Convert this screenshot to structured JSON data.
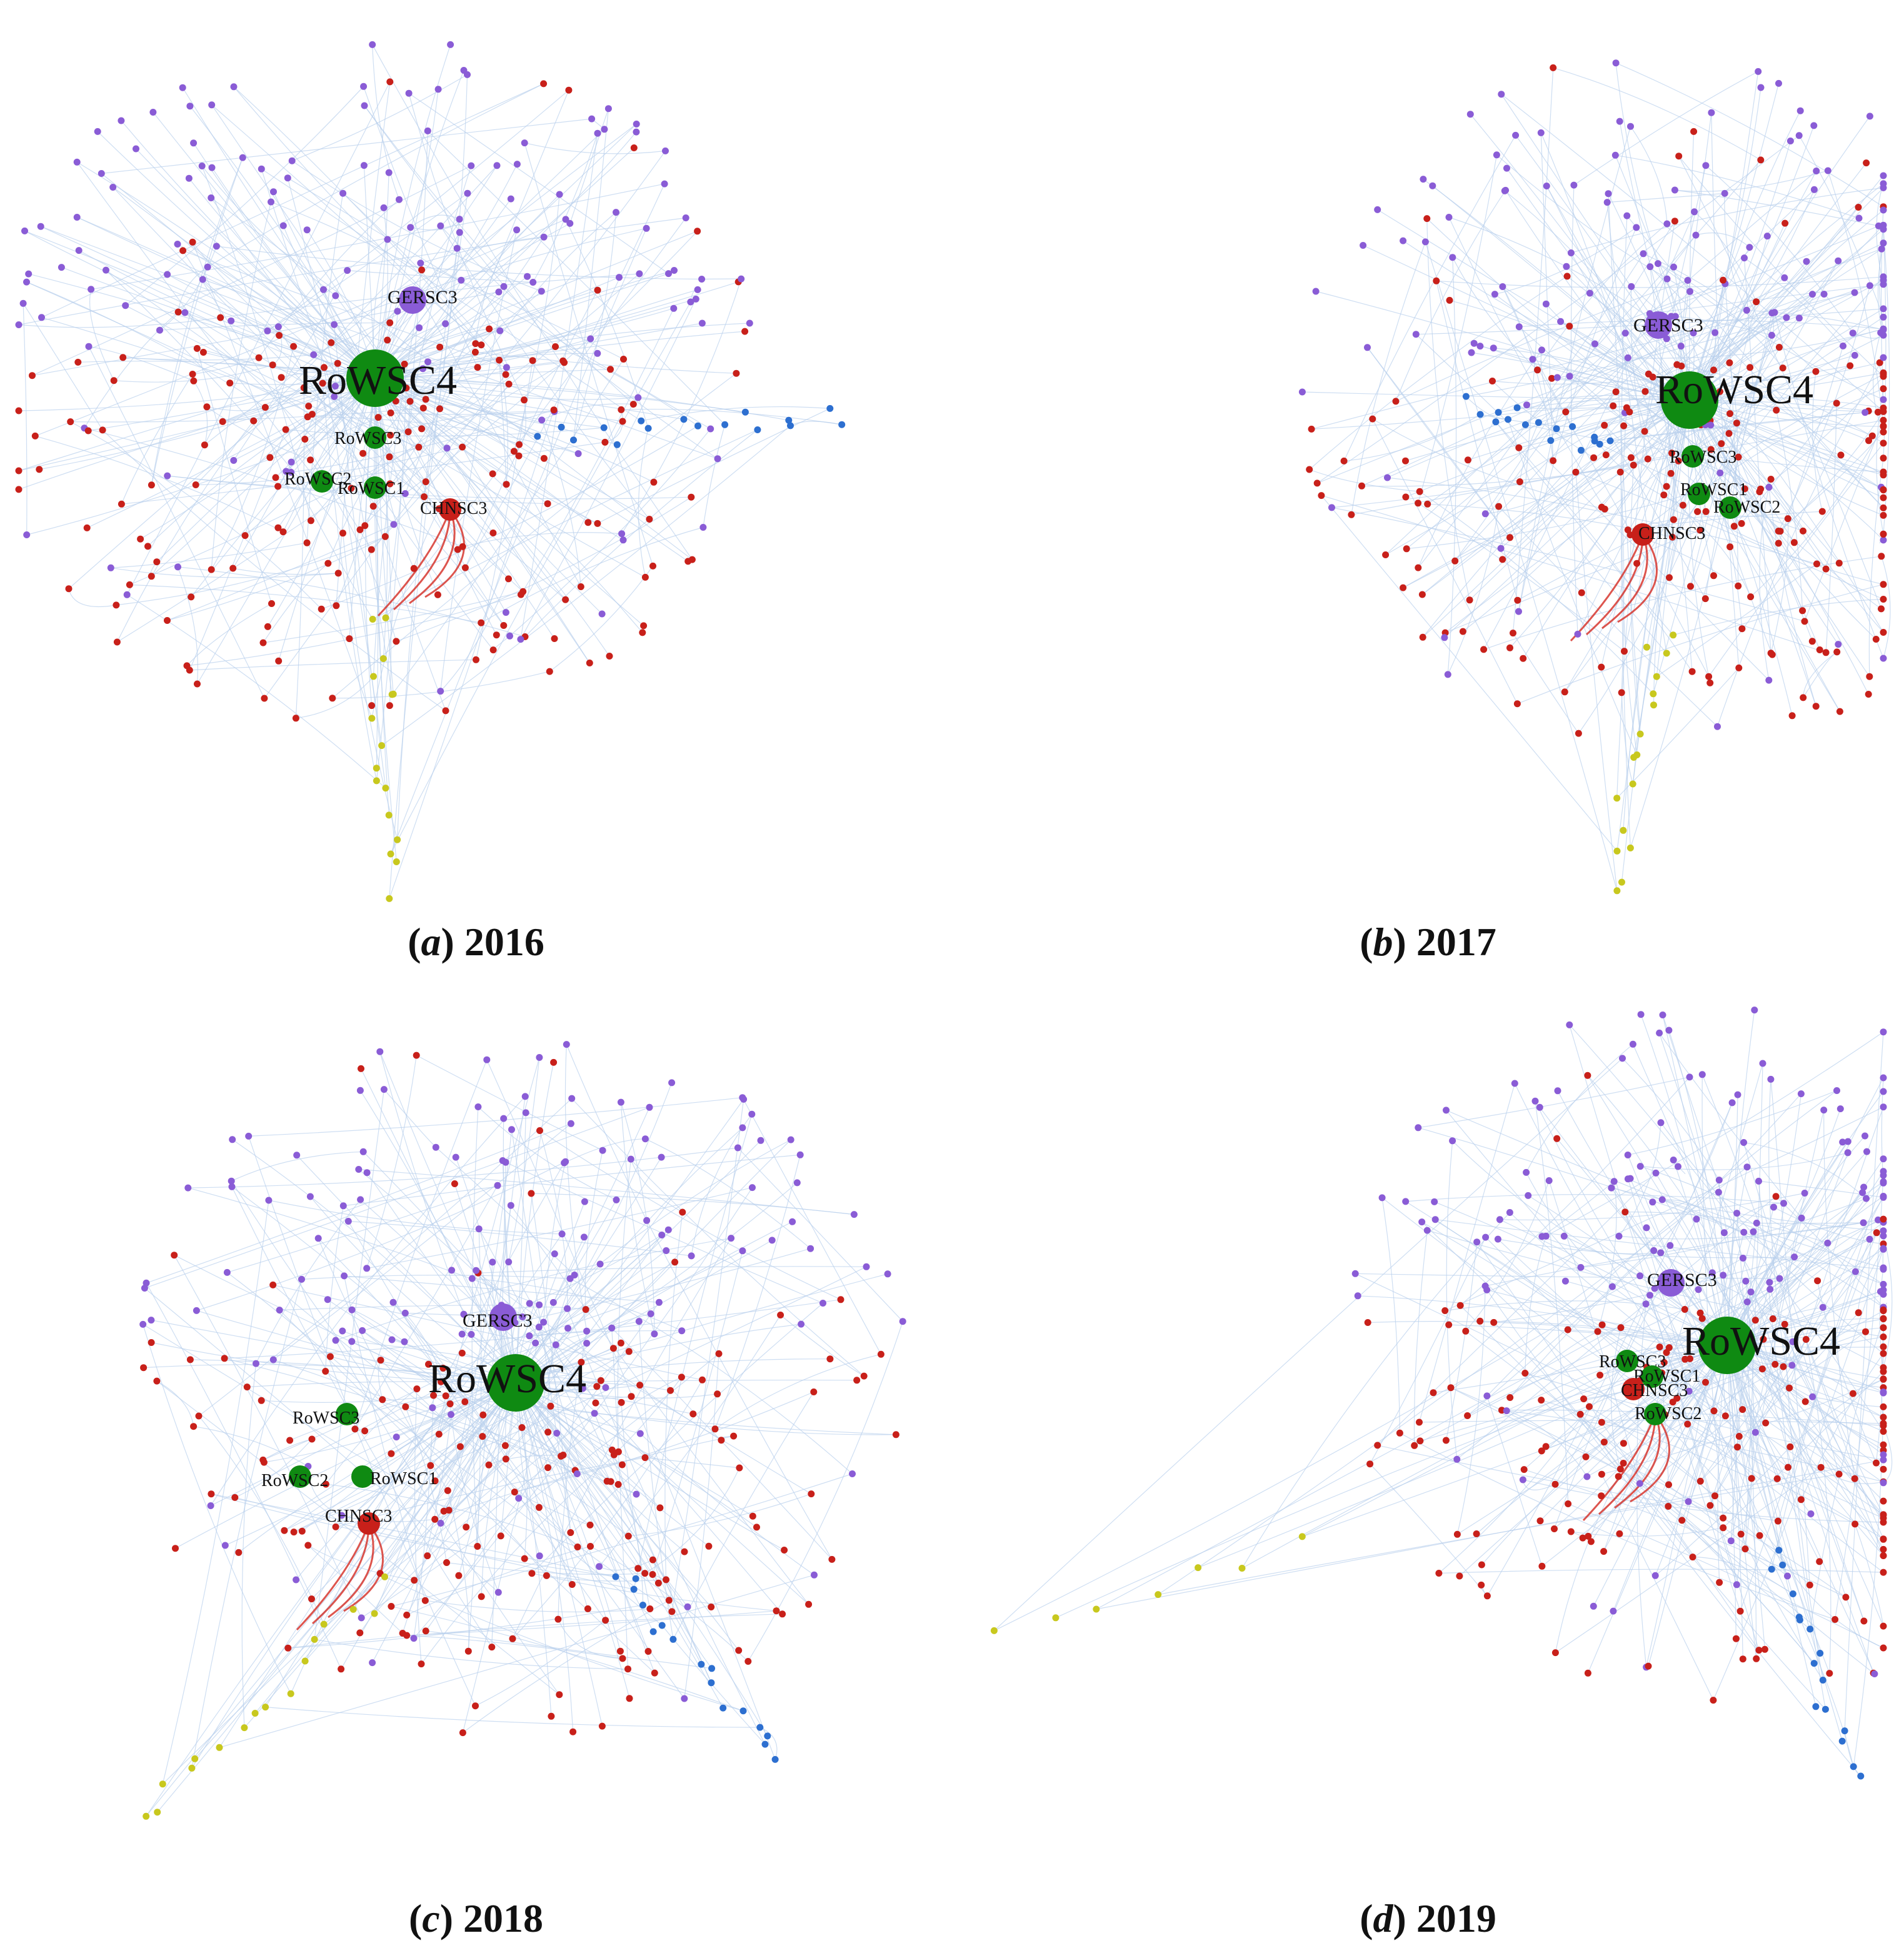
{
  "colors": {
    "purple": "#8a5cd6",
    "red": "#c8201a",
    "green": "#0f8a12",
    "blue": "#2d6fd0",
    "yellow": "#c8c81e",
    "edge": "#b9d0ec",
    "strong_edge": "#d42a22"
  },
  "panels": [
    {
      "letter": "a",
      "year": "2016",
      "nodes": [
        {
          "label": "RoWSC4",
          "color": "green",
          "big": "xl"
        },
        {
          "label": "GERSC3",
          "color": "purple",
          "big": "m"
        },
        {
          "label": "RoWSC3",
          "color": "green",
          "big": "s"
        },
        {
          "label": "RoWSC2",
          "color": "green",
          "big": "s"
        },
        {
          "label": "RoWSC1",
          "color": "green",
          "big": "s"
        },
        {
          "label": "CHNSC3",
          "color": "red",
          "big": "s"
        }
      ]
    },
    {
      "letter": "b",
      "year": "2017",
      "nodes": [
        {
          "label": "RoWSC4",
          "color": "green",
          "big": "xl"
        },
        {
          "label": "GERSC3",
          "color": "purple",
          "big": "m"
        },
        {
          "label": "RoWSC3",
          "color": "green",
          "big": "s"
        },
        {
          "label": "RoWSC1",
          "color": "green",
          "big": "s"
        },
        {
          "label": "RoWSC2",
          "color": "green",
          "big": "s"
        },
        {
          "label": "CHNSC3",
          "color": "red",
          "big": "s"
        }
      ]
    },
    {
      "letter": "c",
      "year": "2018",
      "nodes": [
        {
          "label": "RoWSC4",
          "color": "green",
          "big": "xl"
        },
        {
          "label": "GERSC3",
          "color": "purple",
          "big": "m"
        },
        {
          "label": "RoWSC3",
          "color": "green",
          "big": "s"
        },
        {
          "label": "RoWSC2",
          "color": "green",
          "big": "s"
        },
        {
          "label": "RoWSC1",
          "color": "green",
          "big": "s"
        },
        {
          "label": "CHNSC3",
          "color": "red",
          "big": "s"
        }
      ]
    },
    {
      "letter": "d",
      "year": "2019",
      "nodes": [
        {
          "label": "RoWSC4",
          "color": "green",
          "big": "xl"
        },
        {
          "label": "GERSC3",
          "color": "purple",
          "big": "m"
        },
        {
          "label": "RoWSC3",
          "color": "green",
          "big": "s"
        },
        {
          "label": "RoWSC1",
          "color": "green",
          "big": "s"
        },
        {
          "label": "CHNSC3",
          "color": "red",
          "big": "s"
        },
        {
          "label": "RoWSC2",
          "color": "green",
          "big": "s"
        }
      ]
    }
  ]
}
